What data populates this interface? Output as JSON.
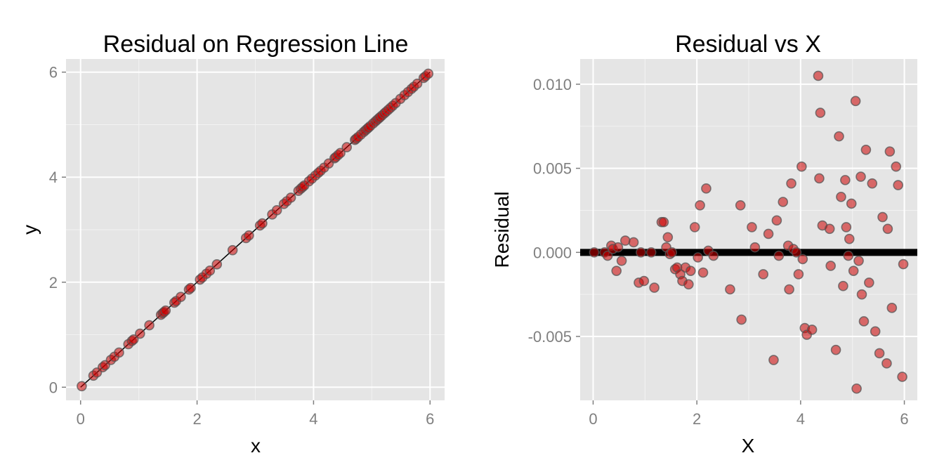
{
  "chart_data": [
    {
      "type": "scatter",
      "title": "Residual on Regression Line",
      "xlabel": "x",
      "ylabel": "y",
      "xlim": [
        -0.25,
        6.25
      ],
      "ylim": [
        -0.25,
        6.25
      ],
      "xticks": [
        0,
        2,
        4,
        6
      ],
      "yticks": [
        0,
        2,
        4,
        6
      ],
      "grid": true,
      "background": "#e5e5e5",
      "point_color": "#cc0000",
      "point_outline": "#555555",
      "line_color": "#000000",
      "regression_line": [
        [
          0,
          0
        ],
        [
          6,
          6
        ]
      ],
      "x": [
        0.02,
        0.22,
        0.28,
        0.38,
        0.42,
        0.52,
        0.58,
        0.66,
        0.82,
        0.88,
        0.91,
        1.02,
        1.18,
        1.38,
        1.41,
        1.43,
        1.46,
        1.61,
        1.64,
        1.72,
        1.86,
        1.89,
        2.05,
        2.09,
        2.16,
        2.22,
        2.34,
        2.61,
        2.84,
        2.89,
        3.08,
        3.12,
        3.29,
        3.37,
        3.49,
        3.54,
        3.61,
        3.74,
        3.78,
        3.81,
        3.84,
        3.92,
        3.97,
        4.03,
        4.08,
        4.12,
        4.18,
        4.26,
        4.36,
        4.38,
        4.42,
        4.46,
        4.57,
        4.71,
        4.73,
        4.76,
        4.81,
        4.86,
        4.89,
        4.92,
        4.94,
        4.97,
        5.02,
        5.06,
        5.09,
        5.12,
        5.14,
        5.17,
        5.21,
        5.24,
        5.28,
        5.32,
        5.36,
        5.41,
        5.49,
        5.56,
        5.62,
        5.68,
        5.72,
        5.78,
        5.89,
        5.92,
        5.97
      ],
      "y": [
        0.02,
        0.22,
        0.28,
        0.38,
        0.42,
        0.52,
        0.58,
        0.66,
        0.82,
        0.88,
        0.91,
        1.02,
        1.18,
        1.38,
        1.41,
        1.43,
        1.46,
        1.61,
        1.64,
        1.72,
        1.86,
        1.89,
        2.05,
        2.09,
        2.16,
        2.22,
        2.34,
        2.61,
        2.84,
        2.89,
        3.08,
        3.12,
        3.29,
        3.37,
        3.49,
        3.54,
        3.61,
        3.74,
        3.78,
        3.81,
        3.84,
        3.92,
        3.97,
        4.03,
        4.08,
        4.12,
        4.18,
        4.26,
        4.36,
        4.38,
        4.42,
        4.46,
        4.57,
        4.71,
        4.73,
        4.76,
        4.81,
        4.86,
        4.89,
        4.92,
        4.94,
        4.97,
        5.02,
        5.06,
        5.09,
        5.12,
        5.14,
        5.17,
        5.21,
        5.24,
        5.28,
        5.32,
        5.36,
        5.41,
        5.49,
        5.56,
        5.62,
        5.68,
        5.72,
        5.78,
        5.89,
        5.92,
        5.97
      ]
    },
    {
      "type": "scatter",
      "title": "Residual vs X",
      "xlabel": "X",
      "ylabel": "Residual",
      "xlim": [
        -0.25,
        6.25
      ],
      "ylim": [
        -0.0088,
        0.0115
      ],
      "xticks": [
        0,
        2,
        4,
        6
      ],
      "yticks": [
        0.01,
        0.005,
        0.0,
        -0.005
      ],
      "ytick_labels": [
        "0.010",
        "0.005",
        "0.000",
        "-0.005"
      ],
      "grid": true,
      "background": "#e5e5e5",
      "point_color": "#cc0000",
      "point_outline": "#555555",
      "line_color": "#000000",
      "zero_line": 0,
      "x": [
        0.02,
        0.22,
        0.28,
        0.35,
        0.38,
        0.45,
        0.48,
        0.55,
        0.62,
        0.78,
        0.88,
        0.92,
        0.98,
        1.12,
        1.18,
        1.32,
        1.36,
        1.41,
        1.44,
        1.48,
        1.52,
        1.58,
        1.62,
        1.68,
        1.72,
        1.78,
        1.84,
        1.88,
        1.96,
        2.02,
        2.06,
        2.12,
        2.18,
        2.22,
        2.32,
        2.64,
        2.84,
        2.86,
        3.06,
        3.12,
        3.28,
        3.38,
        3.48,
        3.54,
        3.58,
        3.66,
        3.76,
        3.78,
        3.82,
        3.86,
        3.92,
        3.96,
        4.02,
        4.04,
        4.08,
        4.12,
        4.22,
        4.34,
        4.36,
        4.38,
        4.42,
        4.56,
        4.58,
        4.68,
        4.74,
        4.78,
        4.82,
        4.86,
        4.88,
        4.92,
        4.94,
        4.98,
        5.02,
        5.06,
        5.08,
        5.12,
        5.16,
        5.18,
        5.22,
        5.26,
        5.32,
        5.38,
        5.44,
        5.52,
        5.58,
        5.66,
        5.68,
        5.72,
        5.76,
        5.84,
        5.88,
        5.96,
        5.98
      ],
      "y": [
        0.0,
        0.0,
        -0.0002,
        0.0004,
        0.0002,
        -0.0011,
        0.0003,
        -0.0005,
        0.0007,
        0.0006,
        -0.0018,
        0.0,
        -0.0017,
        0.0,
        -0.0021,
        0.0018,
        0.0018,
        0.0003,
        0.0009,
        -0.0001,
        0.0,
        -0.001,
        -0.0009,
        -0.0013,
        -0.0017,
        -0.0009,
        -0.0019,
        -0.0011,
        0.0015,
        -0.0003,
        0.0028,
        -0.0012,
        0.0038,
        0.0001,
        -0.0002,
        -0.0022,
        0.0028,
        -0.004,
        0.0015,
        0.0003,
        -0.0013,
        0.0011,
        -0.0064,
        0.0019,
        -0.0002,
        0.003,
        0.0004,
        -0.0022,
        0.0041,
        0.0002,
        0.0,
        -0.0013,
        0.0051,
        -0.0004,
        -0.0045,
        -0.0049,
        -0.0046,
        0.0105,
        0.0044,
        0.0083,
        0.0016,
        0.0014,
        -0.0008,
        -0.0058,
        0.0069,
        0.0033,
        -0.002,
        0.0043,
        0.0015,
        -0.0002,
        0.0008,
        0.0029,
        -0.0011,
        0.009,
        -0.0081,
        -0.0005,
        0.0045,
        -0.0025,
        -0.0041,
        0.0061,
        -0.0018,
        0.0041,
        -0.0047,
        -0.006,
        0.0021,
        -0.0066,
        0.0014,
        0.006,
        -0.0033,
        0.0051,
        0.004,
        -0.0074,
        -0.0007
      ]
    }
  ]
}
